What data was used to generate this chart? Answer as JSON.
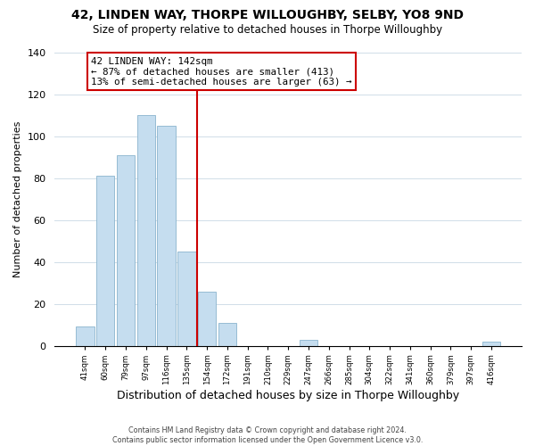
{
  "title": "42, LINDEN WAY, THORPE WILLOUGHBY, SELBY, YO8 9ND",
  "subtitle": "Size of property relative to detached houses in Thorpe Willoughby",
  "xlabel": "Distribution of detached houses by size in Thorpe Willoughby",
  "ylabel": "Number of detached properties",
  "bar_labels": [
    "41sqm",
    "60sqm",
    "79sqm",
    "97sqm",
    "116sqm",
    "135sqm",
    "154sqm",
    "172sqm",
    "191sqm",
    "210sqm",
    "229sqm",
    "247sqm",
    "266sqm",
    "285sqm",
    "304sqm",
    "322sqm",
    "341sqm",
    "360sqm",
    "379sqm",
    "397sqm",
    "416sqm"
  ],
  "bar_heights": [
    9,
    81,
    91,
    110,
    105,
    45,
    26,
    11,
    0,
    0,
    0,
    3,
    0,
    0,
    0,
    0,
    0,
    0,
    0,
    0,
    2
  ],
  "bar_color": "#c5ddef",
  "bar_edge_color": "#8ab4ce",
  "vline_x": 5.5,
  "vline_color": "#cc0000",
  "annotation_line1": "42 LINDEN WAY: 142sqm",
  "annotation_line2": "← 87% of detached houses are smaller (413)",
  "annotation_line3": "13% of semi-detached houses are larger (63) →",
  "annotation_box_edge": "#cc0000",
  "ylim": [
    0,
    140
  ],
  "yticks": [
    0,
    20,
    40,
    60,
    80,
    100,
    120,
    140
  ],
  "footer1": "Contains HM Land Registry data © Crown copyright and database right 2024.",
  "footer2": "Contains public sector information licensed under the Open Government Licence v3.0.",
  "bg_color": "#ffffff",
  "grid_color": "#d0dde8",
  "title_fontsize": 10,
  "subtitle_fontsize": 8.5,
  "ylabel_fontsize": 8,
  "xlabel_fontsize": 9
}
